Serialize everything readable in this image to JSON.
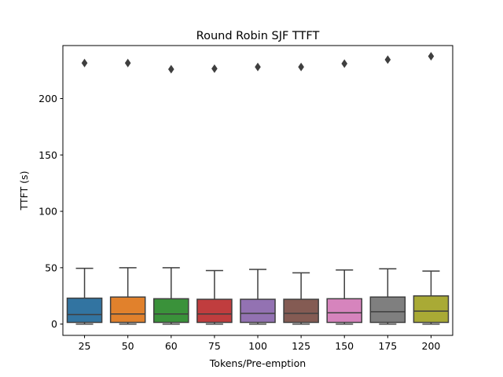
{
  "chart_data": {
    "type": "box",
    "title": "Round Robin SJF TTFT",
    "xlabel": "Tokens/Pre-emption",
    "ylabel": "TTFT (s)",
    "categories": [
      "25",
      "50",
      "60",
      "75",
      "100",
      "125",
      "150",
      "175",
      "200"
    ],
    "yticks": [
      0,
      50,
      100,
      150,
      200
    ],
    "ylim": [
      -10,
      247
    ],
    "grid": false,
    "legend": "none",
    "colors": [
      "#3274a1",
      "#e1812c",
      "#3a923a",
      "#c03d3e",
      "#9372b2",
      "#845b53",
      "#d684bd",
      "#7f7f7f",
      "#a9aa35"
    ],
    "boxes": [
      {
        "category": "25",
        "whisker_low": 0,
        "q1": 1.5,
        "median": 8.5,
        "q3": 23.0,
        "whisker_high": 49.5,
        "outliers": [
          231.5
        ]
      },
      {
        "category": "50",
        "whisker_low": 0,
        "q1": 1.5,
        "median": 9.0,
        "q3": 24.0,
        "whisker_high": 50.0,
        "outliers": [
          231.5
        ]
      },
      {
        "category": "60",
        "whisker_low": 0,
        "q1": 1.5,
        "median": 9.0,
        "q3": 22.5,
        "whisker_high": 50.0,
        "outliers": [
          226.0
        ]
      },
      {
        "category": "75",
        "whisker_low": 0,
        "q1": 1.5,
        "median": 9.0,
        "q3": 22.0,
        "whisker_high": 47.5,
        "outliers": [
          226.5
        ]
      },
      {
        "category": "100",
        "whisker_low": 0,
        "q1": 1.5,
        "median": 9.5,
        "q3": 22.0,
        "whisker_high": 48.5,
        "outliers": [
          228.0
        ]
      },
      {
        "category": "125",
        "whisker_low": 0,
        "q1": 1.5,
        "median": 9.5,
        "q3": 22.0,
        "whisker_high": 45.5,
        "outliers": [
          228.0
        ]
      },
      {
        "category": "150",
        "whisker_low": 0,
        "q1": 1.5,
        "median": 10.0,
        "q3": 22.5,
        "whisker_high": 48.0,
        "outliers": [
          231.0
        ]
      },
      {
        "category": "175",
        "whisker_low": 0,
        "q1": 1.5,
        "median": 11.0,
        "q3": 24.0,
        "whisker_high": 49.0,
        "outliers": [
          234.5
        ]
      },
      {
        "category": "200",
        "whisker_low": 0,
        "q1": 1.5,
        "median": 11.5,
        "q3": 25.0,
        "whisker_high": 47.0,
        "outliers": [
          237.5
        ]
      }
    ]
  }
}
